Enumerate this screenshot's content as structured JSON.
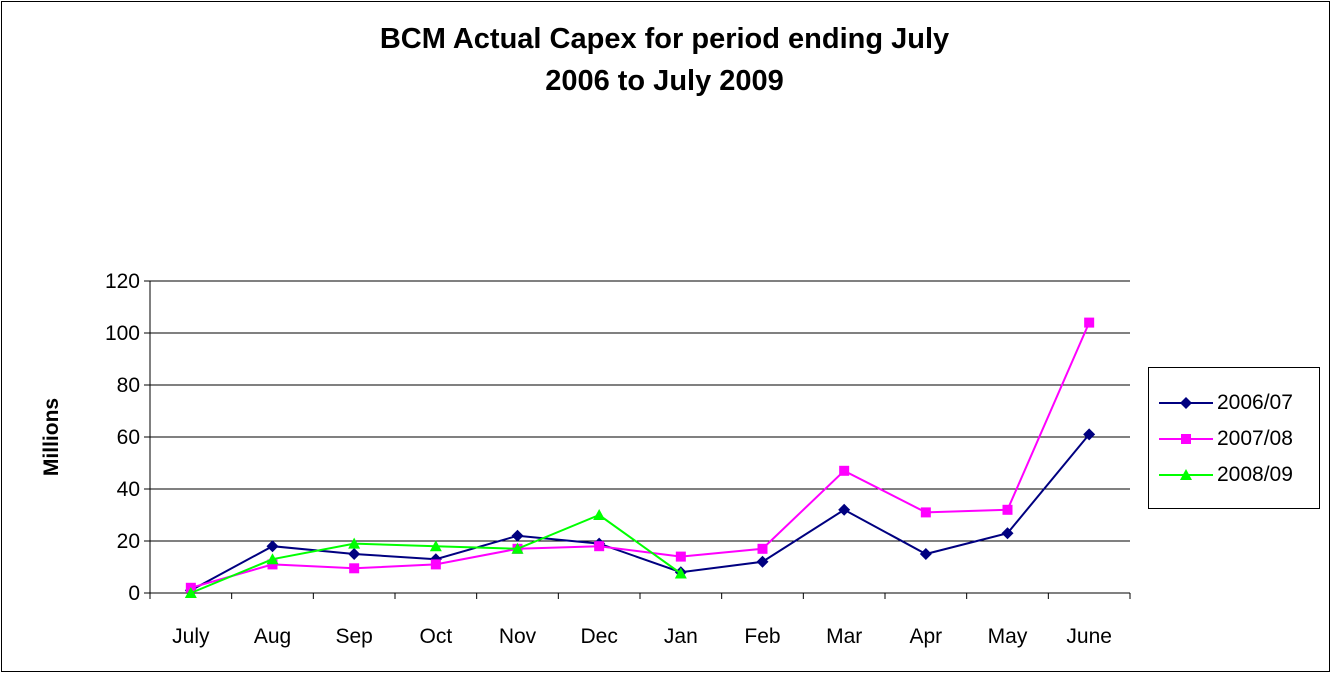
{
  "chart_data": {
    "type": "line",
    "title_line1": "BCM Actual Capex for period ending July",
    "title_line2": "2006 to July 2009",
    "xlabel": "",
    "ylabel": "Millions",
    "ylim": [
      0,
      120
    ],
    "yticks": [
      0,
      20,
      40,
      60,
      80,
      100,
      120
    ],
    "grid": true,
    "legend_position": "right",
    "categories": [
      "July",
      "Aug",
      "Sep",
      "Oct",
      "Nov",
      "Dec",
      "Jan",
      "Feb",
      "Mar",
      "Apr",
      "May",
      "June"
    ],
    "series": [
      {
        "name": "2006/07",
        "color": "#000080",
        "marker": "diamond",
        "values": [
          1,
          18,
          15,
          13,
          22,
          19,
          8,
          12,
          32,
          15,
          23,
          61
        ]
      },
      {
        "name": "2007/08",
        "color": "#ff00ff",
        "marker": "square",
        "values": [
          2,
          11,
          9.5,
          11,
          17,
          18,
          14,
          17,
          47,
          31,
          32,
          104
        ]
      },
      {
        "name": "2008/09",
        "color": "#00ff00",
        "marker": "triangle",
        "values": [
          0,
          13,
          19,
          18,
          17,
          30,
          7.5,
          null,
          null,
          null,
          null,
          null
        ]
      }
    ]
  }
}
